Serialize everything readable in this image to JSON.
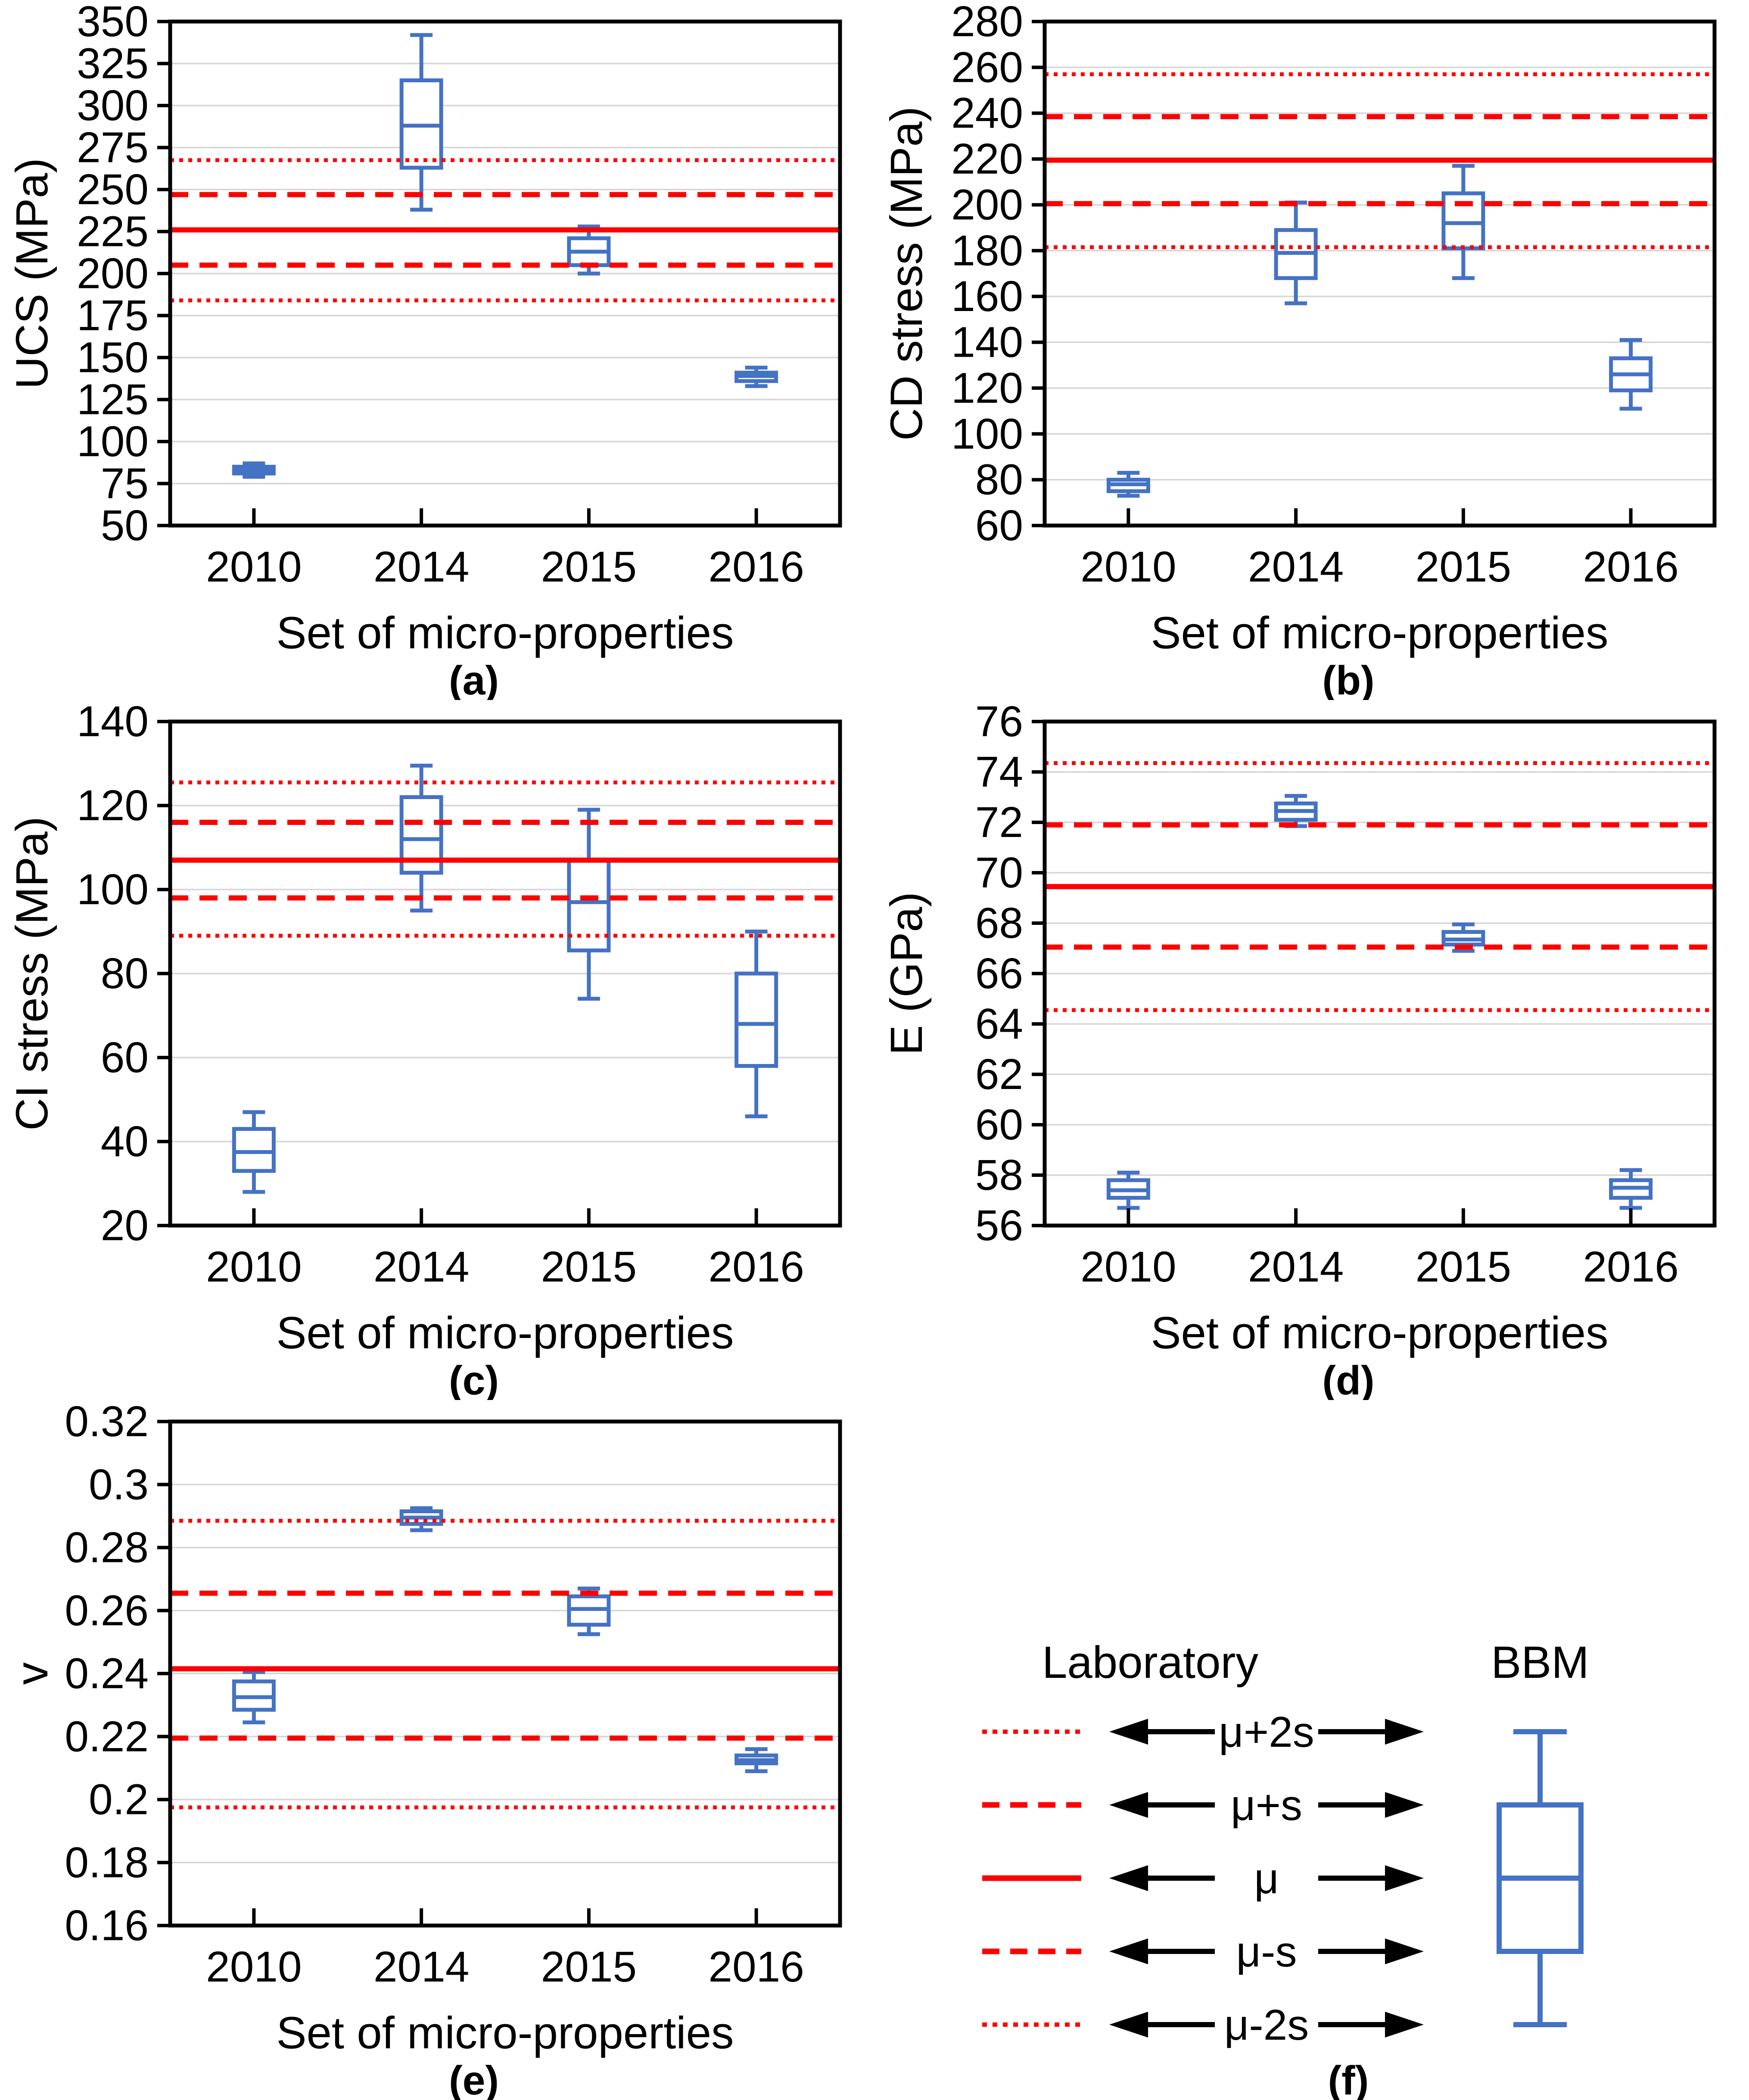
{
  "figure": {
    "x_axis_title": "Set of micro-properties",
    "categories": [
      "2010",
      "2014",
      "2015",
      "2016"
    ],
    "colors": {
      "box_stroke": "#4472C4",
      "box_fill": "#FFFFFF",
      "lab_line": "#FF0000",
      "grid": "#D6D6D6",
      "axis": "#000000",
      "text": "#000000",
      "background": "#FFFFFF"
    }
  },
  "chart_data": [
    {
      "type": "box",
      "caption": "(a)",
      "ylabel": "UCS (MPa)",
      "xlabel": "Set of micro-properties",
      "ylim": [
        50,
        350
      ],
      "ytick": 25,
      "grid": true,
      "categories": [
        "2010",
        "2014",
        "2015",
        "2016"
      ],
      "boxes": [
        {
          "category": "2010",
          "whisker_low": 79,
          "q1": 81,
          "median": 83,
          "q3": 85,
          "whisker_high": 87
        },
        {
          "category": "2014",
          "whisker_low": 238,
          "q1": 263,
          "median": 288,
          "q3": 315,
          "whisker_high": 342
        },
        {
          "category": "2015",
          "whisker_low": 200,
          "q1": 205,
          "median": 213,
          "q3": 221,
          "whisker_high": 228
        },
        {
          "category": "2016",
          "whisker_low": 133,
          "q1": 136,
          "median": 139,
          "q3": 141,
          "whisker_high": 144
        }
      ],
      "laboratory_lines": {
        "mu": 226,
        "mu_plus_s": 247,
        "mu_plus_2s": 267.5,
        "mu_minus_s": 205,
        "mu_minus_2s": 184
      }
    },
    {
      "type": "box",
      "caption": "(b)",
      "ylabel": "CD stress (MPa)",
      "xlabel": "Set of micro-properties",
      "ylim": [
        60,
        280
      ],
      "ytick": 20,
      "grid": true,
      "categories": [
        "2010",
        "2014",
        "2015",
        "2016"
      ],
      "boxes": [
        {
          "category": "2010",
          "whisker_low": 73,
          "q1": 75,
          "median": 78,
          "q3": 80,
          "whisker_high": 83
        },
        {
          "category": "2014",
          "whisker_low": 157,
          "q1": 168,
          "median": 179,
          "q3": 189,
          "whisker_high": 201
        },
        {
          "category": "2015",
          "whisker_low": 168,
          "q1": 181,
          "median": 192,
          "q3": 205,
          "whisker_high": 217
        },
        {
          "category": "2016",
          "whisker_low": 111,
          "q1": 119,
          "median": 126,
          "q3": 133,
          "whisker_high": 141
        }
      ],
      "laboratory_lines": {
        "mu": 219.5,
        "mu_plus_s": 238.5,
        "mu_plus_2s": 257,
        "mu_minus_s": 200.5,
        "mu_minus_2s": 181.5
      }
    },
    {
      "type": "box",
      "caption": "(c)",
      "ylabel": "CI stress (MPa)",
      "xlabel": "Set of micro-properties",
      "ylim": [
        20,
        140
      ],
      "ytick": 20,
      "grid": true,
      "categories": [
        "2010",
        "2014",
        "2015",
        "2016"
      ],
      "boxes": [
        {
          "category": "2010",
          "whisker_low": 28,
          "q1": 33,
          "median": 37.5,
          "q3": 43,
          "whisker_high": 47
        },
        {
          "category": "2014",
          "whisker_low": 95,
          "q1": 104,
          "median": 112,
          "q3": 122,
          "whisker_high": 129.5
        },
        {
          "category": "2015",
          "whisker_low": 74,
          "q1": 85.5,
          "median": 97,
          "q3": 107,
          "whisker_high": 119
        },
        {
          "category": "2016",
          "whisker_low": 46,
          "q1": 58,
          "median": 68,
          "q3": 80,
          "whisker_high": 90
        }
      ],
      "laboratory_lines": {
        "mu": 107,
        "mu_plus_s": 116,
        "mu_plus_2s": 125.5,
        "mu_minus_s": 98,
        "mu_minus_2s": 89
      }
    },
    {
      "type": "box",
      "caption": "(d)",
      "ylabel": "E (GPa)",
      "xlabel": "Set of micro-properties",
      "ylim": [
        56,
        76
      ],
      "ytick": 2,
      "grid": true,
      "categories": [
        "2010",
        "2014",
        "2015",
        "2016"
      ],
      "boxes": [
        {
          "category": "2010",
          "whisker_low": 56.7,
          "q1": 57.1,
          "median": 57.4,
          "q3": 57.8,
          "whisker_high": 58.1
        },
        {
          "category": "2014",
          "whisker_low": 71.85,
          "q1": 72.1,
          "median": 72.45,
          "q3": 72.75,
          "whisker_high": 73.05
        },
        {
          "category": "2015",
          "whisker_low": 66.9,
          "q1": 67.15,
          "median": 67.35,
          "q3": 67.65,
          "whisker_high": 67.95
        },
        {
          "category": "2016",
          "whisker_low": 56.7,
          "q1": 57.1,
          "median": 57.5,
          "q3": 57.8,
          "whisker_high": 58.2
        }
      ],
      "laboratory_lines": {
        "mu": 69.45,
        "mu_plus_s": 71.9,
        "mu_plus_2s": 74.35,
        "mu_minus_s": 67.05,
        "mu_minus_2s": 64.55
      }
    },
    {
      "type": "box",
      "caption": "(e)",
      "ylabel": "v",
      "xlabel": "Set of micro-properties",
      "ylim": [
        0.16,
        0.32
      ],
      "ytick": 0.02,
      "grid": true,
      "categories": [
        "2010",
        "2014",
        "2015",
        "2016"
      ],
      "boxes": [
        {
          "category": "2010",
          "whisker_low": 0.2245,
          "q1": 0.2285,
          "median": 0.2325,
          "q3": 0.2375,
          "whisker_high": 0.2405
        },
        {
          "category": "2014",
          "whisker_low": 0.2855,
          "q1": 0.2875,
          "median": 0.2895,
          "q3": 0.2915,
          "whisker_high": 0.2925
        },
        {
          "category": "2015",
          "whisker_low": 0.2525,
          "q1": 0.2555,
          "median": 0.2605,
          "q3": 0.2645,
          "whisker_high": 0.267
        },
        {
          "category": "2016",
          "whisker_low": 0.209,
          "q1": 0.2115,
          "median": 0.2125,
          "q3": 0.214,
          "whisker_high": 0.216
        }
      ],
      "laboratory_lines": {
        "mu": 0.2415,
        "mu_plus_s": 0.2655,
        "mu_plus_2s": 0.2885,
        "mu_minus_s": 0.2195,
        "mu_minus_2s": 0.1975
      }
    }
  ],
  "legend": {
    "caption": "(f)",
    "left_header": "Laboratory",
    "right_header": "BBM",
    "rows": [
      {
        "label": "μ+2s",
        "style": "dotted"
      },
      {
        "label": "μ+s",
        "style": "dashed"
      },
      {
        "label": "μ",
        "style": "solid"
      },
      {
        "label": "μ-s",
        "style": "dashed"
      },
      {
        "label": "μ-2s",
        "style": "dotted"
      }
    ]
  }
}
